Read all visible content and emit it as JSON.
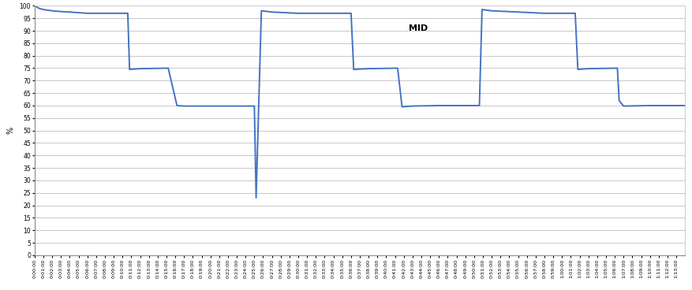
{
  "chart_data": {
    "type": "line",
    "y_label": "%",
    "annotations": [
      "MID"
    ],
    "x": [
      0,
      0.5,
      1,
      2,
      3,
      4,
      6,
      10.6,
      10.8,
      12,
      15.2,
      16.2,
      17,
      20,
      25,
      25.2,
      25.8,
      27,
      30,
      36,
      36.3,
      38,
      41.3,
      41.8,
      43,
      46,
      50.6,
      50.9,
      52,
      55,
      58,
      61.5,
      61.8,
      63,
      66.3,
      66.5,
      67,
      70,
      74
    ],
    "series": [
      {
        "name": "MID",
        "color": "#4472c4",
        "line_style": "solid",
        "values": [
          100,
          99,
          98.5,
          98,
          97.7,
          97.5,
          97,
          97,
          74.5,
          74.8,
          75,
          60,
          59.8,
          59.8,
          59.8,
          23,
          98,
          97.5,
          97,
          97,
          74.5,
          74.8,
          75,
          59.5,
          59.8,
          60,
          60,
          98.5,
          98,
          97.5,
          97,
          97,
          74.5,
          74.8,
          75,
          62,
          59.8,
          60,
          60
        ]
      }
    ],
    "xlim": [
      0,
      74
    ],
    "xticks": [
      {
        "value": 0,
        "label": "0:00:00"
      },
      {
        "value": 1,
        "label": "0:01:00"
      },
      {
        "value": 2,
        "label": "0:02:00"
      },
      {
        "value": 3,
        "label": "0:03:00"
      },
      {
        "value": 4,
        "label": "0:04:00"
      },
      {
        "value": 5,
        "label": "0:05:00"
      },
      {
        "value": 6,
        "label": "0:06:00"
      },
      {
        "value": 7,
        "label": "0:07:00"
      },
      {
        "value": 8,
        "label": "0:08:00"
      },
      {
        "value": 9,
        "label": "0:09:00"
      },
      {
        "value": 10,
        "label": "0:10:00"
      },
      {
        "value": 11,
        "label": "0:11:00"
      },
      {
        "value": 12,
        "label": "0:12:00"
      },
      {
        "value": 13,
        "label": "0:13:00"
      },
      {
        "value": 14,
        "label": "0:14:00"
      },
      {
        "value": 15,
        "label": "0:15:00"
      },
      {
        "value": 16,
        "label": "0:16:00"
      },
      {
        "value": 17,
        "label": "0:17:00"
      },
      {
        "value": 18,
        "label": "0:18:00"
      },
      {
        "value": 19,
        "label": "0:19:00"
      },
      {
        "value": 20,
        "label": "0:20:00"
      },
      {
        "value": 21,
        "label": "0:21:00"
      },
      {
        "value": 22,
        "label": "0:22:00"
      },
      {
        "value": 23,
        "label": "0:23:00"
      },
      {
        "value": 24,
        "label": "0:24:00"
      },
      {
        "value": 25,
        "label": "0:25:00"
      },
      {
        "value": 26,
        "label": "0:26:00"
      },
      {
        "value": 27,
        "label": "0:27:00"
      },
      {
        "value": 28,
        "label": "0:28:00"
      },
      {
        "value": 29,
        "label": "0:29:00"
      },
      {
        "value": 30,
        "label": "0:30:00"
      },
      {
        "value": 31,
        "label": "0:31:00"
      },
      {
        "value": 32,
        "label": "0:32:00"
      },
      {
        "value": 33,
        "label": "0:33:00"
      },
      {
        "value": 34,
        "label": "0:34:00"
      },
      {
        "value": 35,
        "label": "0:35:00"
      },
      {
        "value": 36,
        "label": "0:36:00"
      },
      {
        "value": 37,
        "label": "0:37:00"
      },
      {
        "value": 38,
        "label": "0:38:00"
      },
      {
        "value": 39,
        "label": "0:39:00"
      },
      {
        "value": 40,
        "label": "0:40:00"
      },
      {
        "value": 41,
        "label": "0:41:00"
      },
      {
        "value": 42,
        "label": "0:42:00"
      },
      {
        "value": 43,
        "label": "0:43:00"
      },
      {
        "value": 44,
        "label": "0:44:00"
      },
      {
        "value": 45,
        "label": "0:45:00"
      },
      {
        "value": 46,
        "label": "0:46:00"
      },
      {
        "value": 47,
        "label": "0:47:00"
      },
      {
        "value": 48,
        "label": "0:48:00"
      },
      {
        "value": 49,
        "label": "0:49:00"
      },
      {
        "value": 50,
        "label": "0:50:00"
      },
      {
        "value": 51,
        "label": "0:51:00"
      },
      {
        "value": 52,
        "label": "0:52:00"
      },
      {
        "value": 53,
        "label": "0:53:00"
      },
      {
        "value": 54,
        "label": "0:54:00"
      },
      {
        "value": 55,
        "label": "0:55:00"
      },
      {
        "value": 56,
        "label": "0:56:00"
      },
      {
        "value": 57,
        "label": "0:57:00"
      },
      {
        "value": 58,
        "label": "0:58:00"
      },
      {
        "value": 59,
        "label": "0:59:00"
      },
      {
        "value": 60,
        "label": "1:00:00"
      },
      {
        "value": 61,
        "label": "1:01:00"
      },
      {
        "value": 62,
        "label": "1:02:00"
      },
      {
        "value": 63,
        "label": "1:03:00"
      },
      {
        "value": 64,
        "label": "1:04:00"
      },
      {
        "value": 65,
        "label": "1:05:00"
      },
      {
        "value": 66,
        "label": "1:06:00"
      },
      {
        "value": 67,
        "label": "1:07:00"
      },
      {
        "value": 68,
        "label": "1:08:00"
      },
      {
        "value": 69,
        "label": "1:09:00"
      },
      {
        "value": 70,
        "label": "1:10:00"
      },
      {
        "value": 71,
        "label": "1:11:00"
      },
      {
        "value": 72,
        "label": "1:12:00"
      },
      {
        "value": 73,
        "label": "1:13:00"
      }
    ],
    "ylim": [
      0,
      100
    ],
    "yticks": [
      0,
      5,
      10,
      15,
      20,
      25,
      30,
      35,
      40,
      45,
      50,
      55,
      60,
      65,
      70,
      75,
      80,
      85,
      90,
      95,
      100
    ],
    "grid": true
  }
}
